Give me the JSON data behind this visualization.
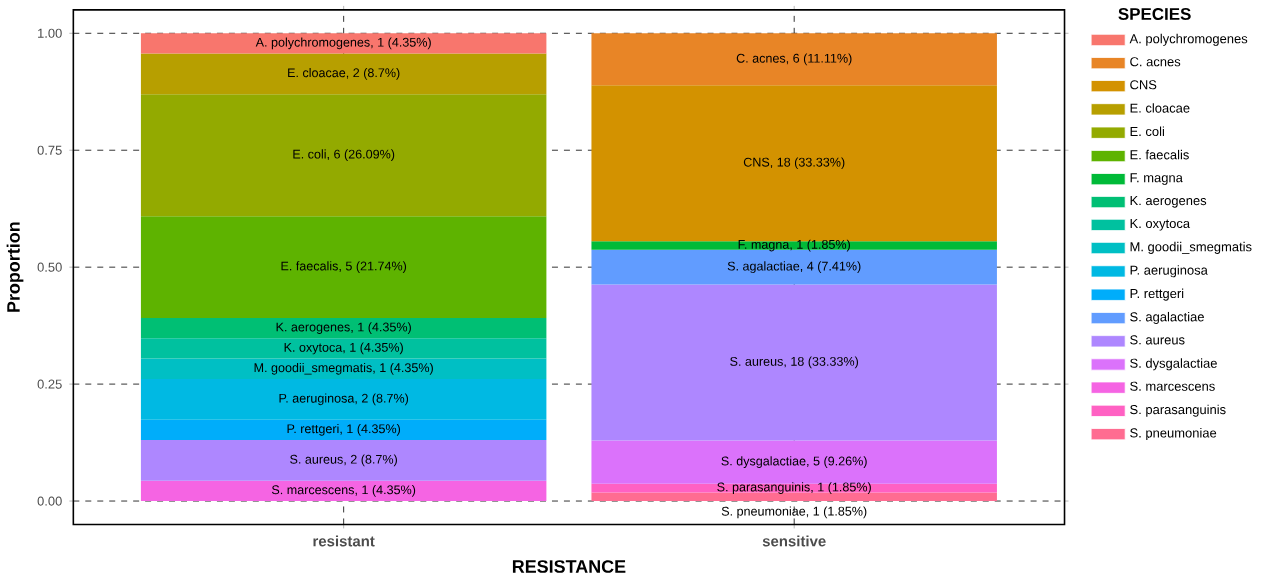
{
  "chart_data": {
    "type": "bar",
    "stacked": true,
    "xlabel": "RESISTANCE",
    "ylabel": "Proportion",
    "legend_title": "SPECIES",
    "legend": "right",
    "grid": true,
    "categories": [
      "resistant",
      "sensitive"
    ],
    "ylim": [
      -0.05,
      1.05
    ],
    "yticks": [
      {
        "value": 0,
        "label": "0.00"
      },
      {
        "value": 0.25,
        "label": "0.25"
      },
      {
        "value": 0.5,
        "label": "0.50"
      },
      {
        "value": 0.75,
        "label": "0.75"
      },
      {
        "value": 1,
        "label": "1.00"
      }
    ],
    "series": [
      {
        "name": "S. pneumoniae",
        "color": "#FF6C91",
        "values": [
          null,
          0.0185
        ],
        "value_labels": [
          null,
          "S. pneumoniae, 1 (1.85%)"
        ]
      },
      {
        "name": "S. parasanguinis",
        "color": "#FF61C3",
        "values": [
          null,
          0.0185
        ],
        "value_labels": [
          null,
          "S. parasanguinis, 1 (1.85%)"
        ]
      },
      {
        "name": "S. marcescens",
        "color": "#F564E3",
        "values": [
          0.0435,
          null
        ],
        "value_labels": [
          "S. marcescens, 1 (4.35%)",
          null
        ]
      },
      {
        "name": "S. dysgalactiae",
        "color": "#DB72FB",
        "values": [
          null,
          0.0926
        ],
        "value_labels": [
          null,
          "S. dysgalactiae, 5 (9.26%)"
        ]
      },
      {
        "name": "S. aureus",
        "color": "#AE87FF",
        "values": [
          0.087,
          0.3333
        ],
        "value_labels": [
          "S. aureus, 2 (8.7%)",
          "S. aureus, 18 (33.33%)"
        ]
      },
      {
        "name": "S. agalactiae",
        "color": "#619CFF",
        "values": [
          null,
          0.0741
        ],
        "value_labels": [
          null,
          "S. agalactiae, 4 (7.41%)"
        ]
      },
      {
        "name": "P. rettgeri",
        "color": "#00ADFA",
        "values": [
          0.0435,
          null
        ],
        "value_labels": [
          "P. rettgeri, 1 (4.35%)",
          null
        ]
      },
      {
        "name": "P. aeruginosa",
        "color": "#00B9E3",
        "values": [
          0.087,
          null
        ],
        "value_labels": [
          "P. aeruginosa, 2 (8.7%)",
          null
        ]
      },
      {
        "name": "M. goodii_smegmatis",
        "color": "#00BFC4",
        "values": [
          0.0435,
          null
        ],
        "value_labels": [
          "M. goodii_smegmatis, 1 (4.35%)",
          null
        ]
      },
      {
        "name": "K. oxytoca",
        "color": "#00C19F",
        "values": [
          0.0435,
          null
        ],
        "value_labels": [
          "K. oxytoca, 1 (4.35%)",
          null
        ]
      },
      {
        "name": "K. aerogenes",
        "color": "#00BF74",
        "values": [
          0.0435,
          null
        ],
        "value_labels": [
          "K. aerogenes, 1 (4.35%)",
          null
        ]
      },
      {
        "name": "F. magna",
        "color": "#00BA38",
        "values": [
          null,
          0.0185
        ],
        "value_labels": [
          null,
          "F. magna, 1 (1.85%)"
        ]
      },
      {
        "name": "E. faecalis",
        "color": "#5EB300",
        "values": [
          0.2174,
          null
        ],
        "value_labels": [
          "E. faecalis, 5 (21.74%)",
          null
        ]
      },
      {
        "name": "E. coli",
        "color": "#93AA00",
        "values": [
          0.2609,
          null
        ],
        "value_labels": [
          "E. coli, 6 (26.09%)",
          null
        ]
      },
      {
        "name": "E. cloacae",
        "color": "#B79F00",
        "values": [
          0.087,
          null
        ],
        "value_labels": [
          "E. cloacae, 2 (8.7%)",
          null
        ]
      },
      {
        "name": "CNS",
        "color": "#D39200",
        "values": [
          null,
          0.3333
        ],
        "value_labels": [
          null,
          "CNS, 18 (33.33%)"
        ]
      },
      {
        "name": "C. acnes",
        "color": "#E88526",
        "values": [
          null,
          0.1111
        ],
        "value_labels": [
          null,
          "C. acnes, 6 (11.11%)"
        ]
      },
      {
        "name": "A. polychromogenes",
        "color": "#F8766D",
        "values": [
          0.0435,
          null
        ],
        "value_labels": [
          "A. polychromogenes, 1 (4.35%)",
          null
        ]
      }
    ]
  }
}
